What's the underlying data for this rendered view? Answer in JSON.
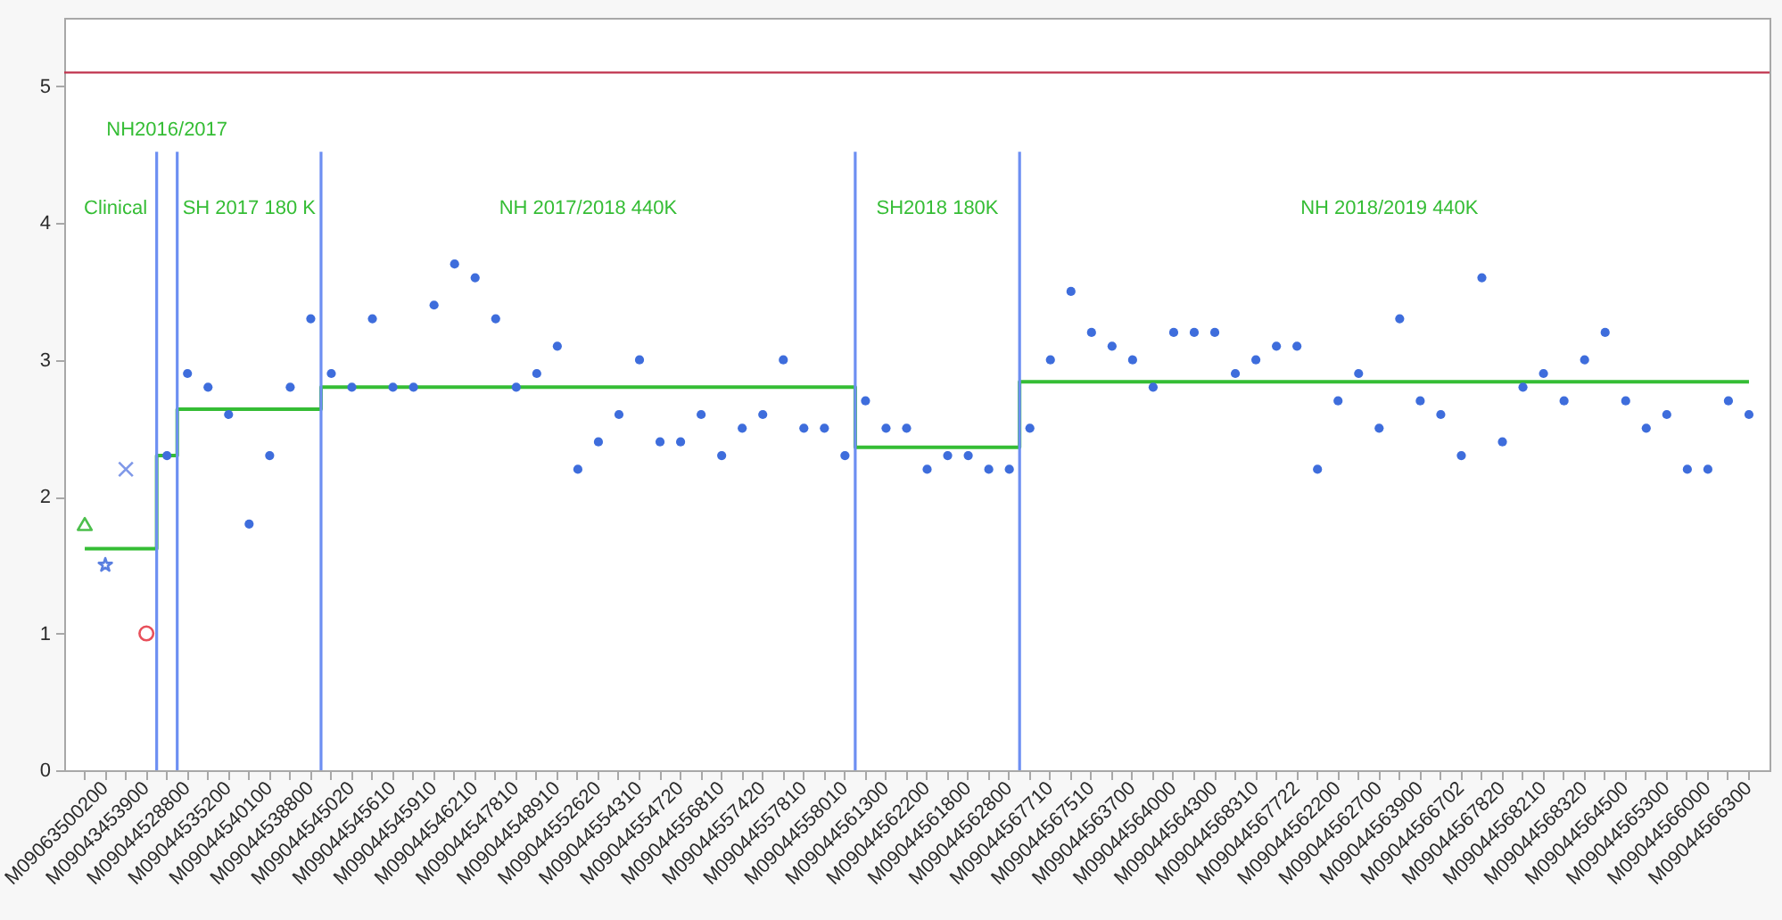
{
  "chart_data": {
    "type": "scatter",
    "categories": [
      null,
      "M09063500200",
      null,
      "M09043453900",
      null,
      "M09044528800",
      null,
      "M09044535200",
      null,
      "M09044540100",
      null,
      "M09044538800",
      null,
      "M09044545020",
      null,
      "M09044545610",
      null,
      "M09044545910",
      null,
      "M09044546210",
      null,
      "M09044547810",
      null,
      "M09044548910",
      null,
      "M09044552620",
      null,
      "M09044554310",
      null,
      "M09044554720",
      null,
      "M09044556810",
      null,
      "M09044557420",
      null,
      "M09044557810",
      null,
      "M09044558010",
      null,
      "M09044561300",
      null,
      "M09044562200",
      null,
      "M09044561800",
      null,
      "M09044562800",
      null,
      "M09044567710",
      null,
      "M09044567510",
      null,
      "M09044563700",
      null,
      "M09044564000",
      null,
      "M09044564300",
      null,
      "M09044568310",
      null,
      "M09044567722",
      null,
      "M09044562200",
      null,
      "M09044562700",
      null,
      "M09044563900",
      null,
      "M09044566702",
      null,
      "M09044567820",
      null,
      "M09044568210",
      null,
      "M09044568320",
      null,
      "M09044564500",
      null,
      "M09044565300",
      null,
      "M09044566000",
      null,
      "M09044566300"
    ],
    "series": [
      {
        "color": "#3e6ddc",
        "values": [
          null,
          null,
          null,
          null,
          2.3,
          2.9,
          2.8,
          2.6,
          1.8,
          2.3,
          2.8,
          3.3,
          2.9,
          2.8,
          3.3,
          2.8,
          2.8,
          3.4,
          3.7,
          3.6,
          3.3,
          2.8,
          2.9,
          3.1,
          2.2,
          2.4,
          2.6,
          3.0,
          2.4,
          2.4,
          2.6,
          2.3,
          2.5,
          2.6,
          3.0,
          2.5,
          2.5,
          2.3,
          2.7,
          2.5,
          2.5,
          2.2,
          2.3,
          2.3,
          2.2,
          2.2,
          2.5,
          3.0,
          3.5,
          3.2,
          3.1,
          3.0,
          2.8,
          3.2,
          3.2,
          3.2,
          2.9,
          3.0,
          3.1,
          3.1,
          2.2,
          2.7,
          2.9,
          2.5,
          3.3,
          2.7,
          2.6,
          2.3,
          3.6,
          2.4,
          2.8,
          2.9,
          2.7,
          3.0,
          3.2,
          2.7,
          2.5,
          2.6,
          2.2,
          2.2,
          2.7,
          2.6
        ]
      },
      {
        "marker": "triangle",
        "color": "#4cbf4c",
        "values": [
          1.8,
          null,
          null,
          null,
          null,
          null,
          null,
          null,
          null,
          null,
          null,
          null,
          null,
          null,
          null,
          null,
          null,
          null,
          null,
          null,
          null,
          null,
          null,
          null,
          null,
          null,
          null,
          null,
          null,
          null,
          null,
          null,
          null,
          null,
          null,
          null,
          null,
          null,
          null,
          null,
          null,
          null,
          null,
          null,
          null,
          null,
          null,
          null,
          null,
          null,
          null,
          null,
          null,
          null,
          null,
          null,
          null,
          null,
          null,
          null,
          null,
          null,
          null,
          null,
          null,
          null,
          null,
          null,
          null,
          null,
          null,
          null,
          null,
          null,
          null,
          null,
          null,
          null,
          null,
          null,
          null,
          null
        ]
      },
      {
        "marker": "star",
        "color": "#5a7fe0",
        "values": [
          null,
          1.5,
          null,
          null,
          null,
          null,
          null,
          null,
          null,
          null,
          null,
          null,
          null,
          null,
          null,
          null,
          null,
          null,
          null,
          null,
          null,
          null,
          null,
          null,
          null,
          null,
          null,
          null,
          null,
          null,
          null,
          null,
          null,
          null,
          null,
          null,
          null,
          null,
          null,
          null,
          null,
          null,
          null,
          null,
          null,
          null,
          null,
          null,
          null,
          null,
          null,
          null,
          null,
          null,
          null,
          null,
          null,
          null,
          null,
          null,
          null,
          null,
          null,
          null,
          null,
          null,
          null,
          null,
          null,
          null,
          null,
          null,
          null,
          null,
          null,
          null,
          null,
          null,
          null,
          null,
          null,
          null
        ]
      },
      {
        "marker": "cross",
        "color": "#7f98e8",
        "values": [
          null,
          null,
          2.2,
          null,
          null,
          null,
          null,
          null,
          null,
          null,
          null,
          null,
          null,
          null,
          null,
          null,
          null,
          null,
          null,
          null,
          null,
          null,
          null,
          null,
          null,
          null,
          null,
          null,
          null,
          null,
          null,
          null,
          null,
          null,
          null,
          null,
          null,
          null,
          null,
          null,
          null,
          null,
          null,
          null,
          null,
          null,
          null,
          null,
          null,
          null,
          null,
          null,
          null,
          null,
          null,
          null,
          null,
          null,
          null,
          null,
          null,
          null,
          null,
          null,
          null,
          null,
          null,
          null,
          null,
          null,
          null,
          null,
          null,
          null,
          null,
          null,
          null,
          null,
          null,
          null,
          null,
          null
        ]
      },
      {
        "marker": "circle",
        "color": "#e8505b",
        "values": [
          null,
          null,
          null,
          1.0,
          null,
          null,
          null,
          null,
          null,
          null,
          null,
          null,
          null,
          null,
          null,
          null,
          null,
          null,
          null,
          null,
          null,
          null,
          null,
          null,
          null,
          null,
          null,
          null,
          null,
          null,
          null,
          null,
          null,
          null,
          null,
          null,
          null,
          null,
          null,
          null,
          null,
          null,
          null,
          null,
          null,
          null,
          null,
          null,
          null,
          null,
          null,
          null,
          null,
          null,
          null,
          null,
          null,
          null,
          null,
          null,
          null,
          null,
          null,
          null,
          null,
          null,
          null,
          null,
          null,
          null,
          null,
          null,
          null,
          null,
          null,
          null,
          null,
          null,
          null,
          null,
          null,
          null
        ]
      },
      {
        "type": "step",
        "color": "#35bd35",
        "values": [
          1.62,
          1.62,
          1.62,
          1.62,
          2.3,
          2.64,
          2.64,
          2.64,
          2.64,
          2.64,
          2.64,
          2.64,
          2.8,
          2.8,
          2.8,
          2.8,
          2.8,
          2.8,
          2.8,
          2.8,
          2.8,
          2.8,
          2.8,
          2.8,
          2.8,
          2.8,
          2.8,
          2.8,
          2.8,
          2.8,
          2.8,
          2.8,
          2.8,
          2.8,
          2.8,
          2.8,
          2.8,
          2.8,
          2.36,
          2.36,
          2.36,
          2.36,
          2.36,
          2.36,
          2.36,
          2.36,
          2.84,
          2.84,
          2.84,
          2.84,
          2.84,
          2.84,
          2.84,
          2.84,
          2.84,
          2.84,
          2.84,
          2.84,
          2.84,
          2.84,
          2.84,
          2.84,
          2.84,
          2.84,
          2.84,
          2.84,
          2.84,
          2.84,
          2.84,
          2.84,
          2.84,
          2.84,
          2.84,
          2.84,
          2.84,
          2.84,
          2.84,
          2.84,
          2.84,
          2.84,
          2.84,
          2.84
        ]
      }
    ],
    "ylim": [
      0,
      5.5
    ],
    "yticks": [
      0,
      1,
      2,
      3,
      4,
      5
    ],
    "ref_lines": [
      {
        "axis": "y",
        "value": 5.1,
        "color": "#c0334d"
      }
    ],
    "annotations": [
      "Clinical",
      "NH2016/2017",
      "SH 2017 180 K",
      "NH 2017/2018 440K",
      "SH2018 180K",
      "NH 2018/2019 440K"
    ]
  }
}
